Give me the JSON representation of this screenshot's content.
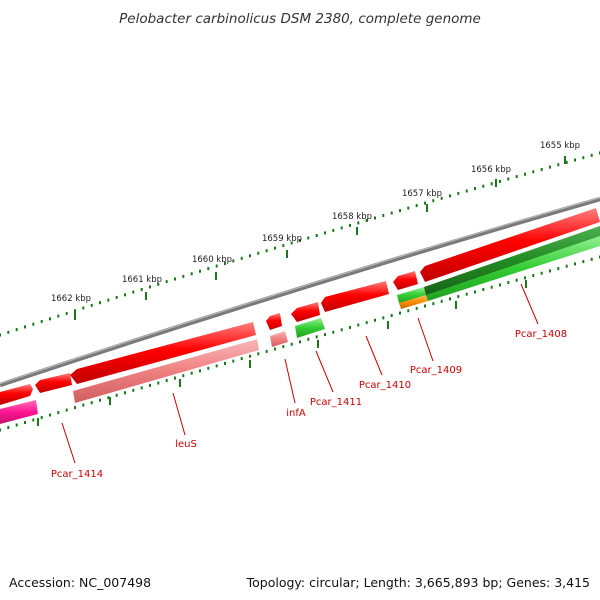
{
  "title": "Pelobacter carbinolicus DSM 2380, complete genome",
  "footer": {
    "accession": "Accession: NC_007498",
    "topology": "Topology: circular; Length: 3,665,893 bp; Genes: 3,415"
  },
  "ruler": {
    "labels": [
      "1655 kbp",
      "1656 kbp",
      "1657 kbp",
      "1658 kbp",
      "1659 kbp",
      "1660 kbp",
      "1661 kbp",
      "1662 kbp"
    ]
  },
  "genes": {
    "labels": [
      "Pcar_1408",
      "Pcar_1409",
      "Pcar_1410",
      "Pcar_1411",
      "infA",
      "leuS",
      "Pcar_1414"
    ]
  },
  "colors": {
    "backbone": "#808080",
    "gene_red": "#ff0000",
    "gene_pink": "#f08080",
    "gene_magenta": "#ff1493",
    "gene_green": "#33cc33",
    "gene_darkgreen": "#228b22",
    "gene_orange": "#ff8c00",
    "tick_green": "#1a7a1a",
    "label_red": "#cc0000"
  }
}
